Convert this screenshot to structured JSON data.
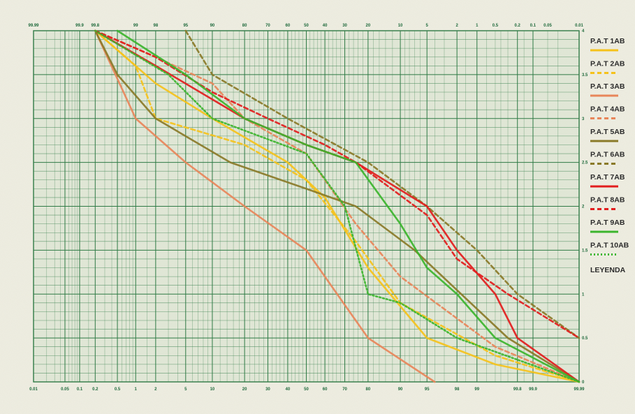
{
  "chart_data": {
    "type": "line",
    "scale": "normal-probability",
    "title": "",
    "xlabel": "",
    "ylabel": "",
    "ylim": [
      0,
      4
    ],
    "grid": true,
    "legend_placement": "right",
    "legend_title": "LEYENDA",
    "bottom_ticks": [
      "0.01",
      "0.05",
      "0.1",
      "0.2",
      "0.5",
      "1",
      "2",
      "5",
      "10",
      "20",
      "30",
      "40",
      "50",
      "60",
      "70",
      "80",
      "90",
      "95",
      "98",
      "99",
      "99.8",
      "99.9",
      "99.99"
    ],
    "top_ticks": [
      "99.99",
      "99.9",
      "99.8",
      "99",
      "98",
      "95",
      "90",
      "80",
      "70",
      "60",
      "50",
      "40",
      "30",
      "20",
      "10",
      "5",
      "2",
      "1",
      "0.5",
      "0.2",
      "0.1",
      "0.05",
      "0.01"
    ],
    "y_ticks": [
      "0",
      "0.5",
      "1",
      "1.5",
      "2",
      "2.5",
      "3",
      "3.5",
      "4"
    ],
    "series": [
      {
        "name": "P.A.T 1AB",
        "color": "#f5c21b",
        "style": "solid",
        "points": [
          [
            0.2,
            4
          ],
          [
            2,
            3.4
          ],
          [
            10,
            3
          ],
          [
            40,
            2.5
          ],
          [
            60,
            2.1
          ],
          [
            80,
            1.3
          ],
          [
            95,
            0.5
          ],
          [
            99.5,
            0.2
          ],
          [
            99.99,
            0
          ]
        ]
      },
      {
        "name": "P.A.T 2AB",
        "color": "#f5c21b",
        "style": "dashed",
        "points": [
          [
            0.2,
            4
          ],
          [
            1,
            3.6
          ],
          [
            2,
            3
          ],
          [
            20,
            2.7
          ],
          [
            50,
            2.3
          ],
          [
            75,
            1.6
          ],
          [
            90,
            0.9
          ],
          [
            99.5,
            0.3
          ],
          [
            99.99,
            0
          ]
        ]
      },
      {
        "name": "P.A.T 3AB",
        "color": "#e8865a",
        "style": "solid",
        "points": [
          [
            0.2,
            4
          ],
          [
            1,
            3
          ],
          [
            5,
            2.5
          ],
          [
            20,
            2
          ],
          [
            50,
            1.5
          ],
          [
            80,
            0.5
          ],
          [
            96,
            0
          ]
        ]
      },
      {
        "name": "P.A.T 4AB",
        "color": "#e8865a",
        "style": "dashed",
        "points": [
          [
            0.2,
            4
          ],
          [
            2,
            3.7
          ],
          [
            10,
            3.4
          ],
          [
            20,
            3
          ],
          [
            50,
            2.6
          ],
          [
            75,
            1.8
          ],
          [
            90,
            1.2
          ],
          [
            99.5,
            0.4
          ],
          [
            99.99,
            0
          ]
        ]
      },
      {
        "name": "P.A.T 5AB",
        "color": "#8a7a28",
        "style": "solid",
        "points": [
          [
            0.2,
            4
          ],
          [
            0.5,
            3.5
          ],
          [
            2,
            3
          ],
          [
            15,
            2.5
          ],
          [
            50,
            2.2
          ],
          [
            75,
            2
          ],
          [
            93,
            1.5
          ],
          [
            99.7,
            0.5
          ],
          [
            99.99,
            0
          ]
        ]
      },
      {
        "name": "P.A.T 6AB",
        "color": "#8a7a28",
        "style": "dashed",
        "points": [
          [
            5,
            4
          ],
          [
            10,
            3.5
          ],
          [
            40,
            3
          ],
          [
            80,
            2.5
          ],
          [
            95,
            2
          ],
          [
            99,
            1.5
          ],
          [
            99.8,
            1
          ],
          [
            99.99,
            0.5
          ]
        ]
      },
      {
        "name": "P.A.T 7AB",
        "color": "#e21d1d",
        "style": "solid",
        "points": [
          [
            0.2,
            4
          ],
          [
            2,
            3.6
          ],
          [
            20,
            3
          ],
          [
            50,
            2.7
          ],
          [
            75,
            2.5
          ],
          [
            95,
            2
          ],
          [
            98,
            1.5
          ],
          [
            99.5,
            1
          ],
          [
            99.8,
            0.5
          ],
          [
            99.99,
            0
          ]
        ]
      },
      {
        "name": "P.A.T 8AB",
        "color": "#e21d1d",
        "style": "dashed",
        "points": [
          [
            0.2,
            4
          ],
          [
            2,
            3.7
          ],
          [
            10,
            3.3
          ],
          [
            30,
            3
          ],
          [
            60,
            2.7
          ],
          [
            75,
            2.5
          ],
          [
            95,
            1.9
          ],
          [
            98,
            1.4
          ],
          [
            99.7,
            1
          ],
          [
            99.99,
            0.5
          ]
        ]
      },
      {
        "name": "P.A.T 9AB",
        "color": "#3bb52c",
        "style": "solid",
        "points": [
          [
            0.5,
            4
          ],
          [
            5,
            3.5
          ],
          [
            20,
            3
          ],
          [
            50,
            2.7
          ],
          [
            75,
            2.5
          ],
          [
            90,
            1.8
          ],
          [
            95,
            1.3
          ],
          [
            98,
            1
          ],
          [
            99.5,
            0.5
          ],
          [
            99.99,
            0
          ]
        ]
      },
      {
        "name": "P.A.T 10AB",
        "color": "#3bb52c",
        "style": "dotted",
        "points": [
          [
            0.2,
            4
          ],
          [
            3,
            3.5
          ],
          [
            10,
            3
          ],
          [
            50,
            2.6
          ],
          [
            70,
            2
          ],
          [
            80,
            1
          ],
          [
            90,
            0.9
          ],
          [
            98,
            0.5
          ],
          [
            99.99,
            0
          ]
        ]
      }
    ]
  }
}
